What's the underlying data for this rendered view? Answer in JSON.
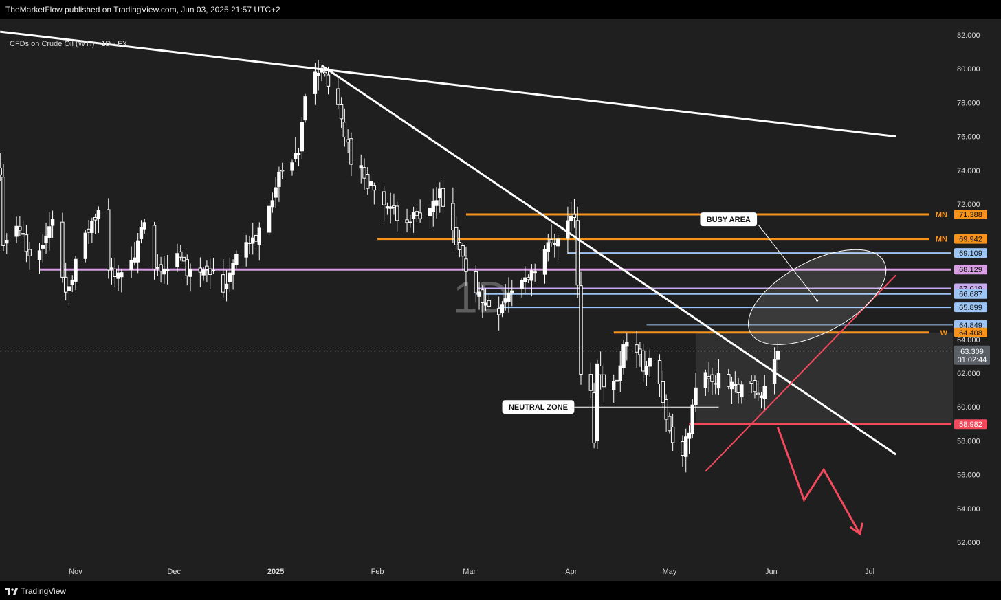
{
  "header": {
    "publisher_line": "TheMarketFlow published on TradingView.com, Jun 03, 2025 21:57 UTC+2",
    "instrument": "CFDs on Crude Oil (WTI) · 1D · FX"
  },
  "footer": {
    "brand": "TradingView",
    "logo_icon": "tradingview-logo-icon"
  },
  "colors": {
    "background": "#1f1f1f",
    "frame": "#000000",
    "candle_up": "#ffffff",
    "candle_down": "#ffffff",
    "orange": "#f7931a",
    "blue": "#9cc4f5",
    "lavender": "#c6a9ef",
    "pink": "#d79ee3",
    "red": "#f2495c",
    "white_line": "#ffffff"
  },
  "chart_data": {
    "type": "candlestick",
    "title": "CFDs on Crude Oil (WTI) · 1D · FX",
    "watermark": "1D",
    "x_labels": [
      {
        "label": "Nov",
        "date": "2024-11-01"
      },
      {
        "label": "Dec",
        "date": "2024-12-01"
      },
      {
        "label": "2025",
        "date": "2025-01-01"
      },
      {
        "label": "Feb",
        "date": "2025-02-01"
      },
      {
        "label": "Mar",
        "date": "2025-03-01"
      },
      {
        "label": "Apr",
        "date": "2025-04-01"
      },
      {
        "label": "May",
        "date": "2025-05-01"
      },
      {
        "label": "Jun",
        "date": "2025-06-01"
      },
      {
        "label": "Jul",
        "date": "2025-07-01"
      }
    ],
    "y_ticks": [
      "52.000",
      "54.000",
      "56.000",
      "58.000",
      "60.000",
      "62.000",
      "64.000",
      "72.000",
      "74.000",
      "76.000",
      "78.000",
      "80.000",
      "82.000"
    ],
    "ylim": [
      50.5,
      83.3
    ],
    "last_price": {
      "value": 63.309,
      "label": "63.309",
      "countdown": "01:02:44"
    },
    "price_path": [
      {
        "date": "2024-10-09",
        "price": 73.6
      },
      {
        "date": "2024-10-10",
        "price": 69.9
      },
      {
        "date": "2024-10-15",
        "price": 70.5
      },
      {
        "date": "2024-10-18",
        "price": 68.8
      },
      {
        "date": "2024-10-25",
        "price": 70.8
      },
      {
        "date": "2024-10-29",
        "price": 66.9
      },
      {
        "date": "2024-11-05",
        "price": 70.5
      },
      {
        "date": "2024-11-08",
        "price": 71.4
      },
      {
        "date": "2024-11-11",
        "price": 68.0
      },
      {
        "date": "2024-11-18",
        "price": 68.3
      },
      {
        "date": "2024-11-22",
        "price": 70.9
      },
      {
        "date": "2024-11-25",
        "price": 67.8
      },
      {
        "date": "2024-12-02",
        "price": 68.9
      },
      {
        "date": "2024-12-06",
        "price": 67.9
      },
      {
        "date": "2024-12-11",
        "price": 68.5
      },
      {
        "date": "2024-12-16",
        "price": 66.9
      },
      {
        "date": "2024-12-20",
        "price": 69.3
      },
      {
        "date": "2024-12-26",
        "price": 69.9
      },
      {
        "date": "2025-01-02",
        "price": 73.5
      },
      {
        "date": "2025-01-08",
        "price": 74.8
      },
      {
        "date": "2025-01-10",
        "price": 78.6
      },
      {
        "date": "2025-01-15",
        "price": 80.2
      },
      {
        "date": "2025-01-20",
        "price": 77.5
      },
      {
        "date": "2025-01-24",
        "price": 74.8
      },
      {
        "date": "2025-01-31",
        "price": 72.8
      },
      {
        "date": "2025-02-05",
        "price": 71.5
      },
      {
        "date": "2025-02-12",
        "price": 71.2
      },
      {
        "date": "2025-02-14",
        "price": 70.9
      },
      {
        "date": "2025-02-20",
        "price": 72.5
      },
      {
        "date": "2025-02-25",
        "price": 69.5
      },
      {
        "date": "2025-03-05",
        "price": 66.2
      },
      {
        "date": "2025-03-10",
        "price": 65.9
      },
      {
        "date": "2025-03-14",
        "price": 67.0
      },
      {
        "date": "2025-03-18",
        "price": 67.5
      },
      {
        "date": "2025-03-24",
        "price": 69.2
      },
      {
        "date": "2025-03-31",
        "price": 71.0
      },
      {
        "date": "2025-04-02",
        "price": 71.4
      },
      {
        "date": "2025-04-03",
        "price": 66.9
      },
      {
        "date": "2025-04-04",
        "price": 61.9
      },
      {
        "date": "2025-04-07",
        "price": 60.7
      },
      {
        "date": "2025-04-08",
        "price": 58.2
      },
      {
        "date": "2025-04-09",
        "price": 62.4
      },
      {
        "date": "2025-04-11",
        "price": 61.6
      },
      {
        "date": "2025-04-15",
        "price": 61.3
      },
      {
        "date": "2025-04-17",
        "price": 64.0
      },
      {
        "date": "2025-04-21",
        "price": 63.3
      },
      {
        "date": "2025-04-23",
        "price": 62.3
      },
      {
        "date": "2025-04-25",
        "price": 63.0
      },
      {
        "date": "2025-04-29",
        "price": 60.4
      },
      {
        "date": "2025-05-01",
        "price": 58.3
      },
      {
        "date": "2025-05-05",
        "price": 57.0
      },
      {
        "date": "2025-05-07",
        "price": 58.8
      },
      {
        "date": "2025-05-09",
        "price": 61.0
      },
      {
        "date": "2025-05-12",
        "price": 62.4
      },
      {
        "date": "2025-05-14",
        "price": 61.2
      },
      {
        "date": "2025-05-16",
        "price": 62.3
      },
      {
        "date": "2025-05-21",
        "price": 61.1
      },
      {
        "date": "2025-05-23",
        "price": 61.3
      },
      {
        "date": "2025-05-27",
        "price": 60.9
      },
      {
        "date": "2025-05-30",
        "price": 60.8
      },
      {
        "date": "2025-06-02",
        "price": 62.5
      },
      {
        "date": "2025-06-03",
        "price": 63.309
      }
    ],
    "levels": [
      {
        "price": 71.388,
        "label": "71.388",
        "tag": "MN",
        "color": "#f7931a",
        "start": "2025-02-28"
      },
      {
        "price": 69.942,
        "label": "69.942",
        "tag": "MN",
        "color": "#f7931a",
        "start": "2025-02-01"
      },
      {
        "price": 69.109,
        "label": "69.109",
        "tag": "",
        "color": "#9cc4f5",
        "start": "2025-03-31"
      },
      {
        "price": 68.129,
        "label": "68.129",
        "tag": "",
        "color": "#d79ee3",
        "start": "2024-10-21"
      },
      {
        "price": 67.019,
        "label": "67.019",
        "tag": "",
        "color": "#c6a9ef",
        "start": "2025-03-03"
      },
      {
        "price": 66.687,
        "label": "66.687",
        "tag": "",
        "color": "#9cc4f5",
        "start": "2025-03-03"
      },
      {
        "price": 65.899,
        "label": "65.899",
        "tag": "",
        "color": "#9cc4f5",
        "start": "2025-03-10"
      },
      {
        "price": 64.849,
        "label": "64.849",
        "tag": "",
        "color": "#9cc4f5",
        "start": "2025-04-24"
      },
      {
        "price": 64.408,
        "label": "64.408",
        "tag": "W",
        "color": "#f7931a",
        "start": "2025-04-14"
      },
      {
        "price": 58.982,
        "label": "58.982",
        "tag": "",
        "color": "#f2495c",
        "start": "2025-05-07"
      }
    ],
    "trendlines": [
      {
        "name": "long-downtrend",
        "from": {
          "date": "2024-10-09",
          "price": 82.2
        },
        "to": {
          "date": "2025-07-09",
          "price": 76.0
        },
        "color": "#ffffff"
      },
      {
        "name": "steep-downtrend",
        "from": {
          "date": "2025-01-15",
          "price": 80.2
        },
        "to": {
          "date": "2025-07-09",
          "price": 57.2
        },
        "color": "#ffffff"
      },
      {
        "name": "rising-support",
        "from": {
          "date": "2025-05-12",
          "price": 56.2
        },
        "to": {
          "date": "2025-07-09",
          "price": 67.8
        },
        "color": "#f2495c"
      }
    ],
    "annotations": [
      {
        "text": "BUSY AREA",
        "date": "2025-05-19",
        "price": 71.1
      },
      {
        "text": "NEUTRAL ZONE",
        "date": "2025-03-22",
        "price": 60.0
      }
    ],
    "neutral_box": {
      "from": "2025-05-09",
      "to": "2025-07-09",
      "top": 64.4,
      "bottom": 58.98
    },
    "projection_arrow": [
      {
        "date": "2025-06-03",
        "price": 58.8
      },
      {
        "date": "2025-06-11",
        "price": 54.5
      },
      {
        "date": "2025-06-17",
        "price": 56.3
      },
      {
        "date": "2025-06-28",
        "price": 52.5
      }
    ],
    "busy_ellipse": {
      "center_date": "2025-06-15",
      "center_price": 66.5,
      "rx_days": 17,
      "ry_price": 4.9,
      "rotate_deg": -28
    }
  }
}
